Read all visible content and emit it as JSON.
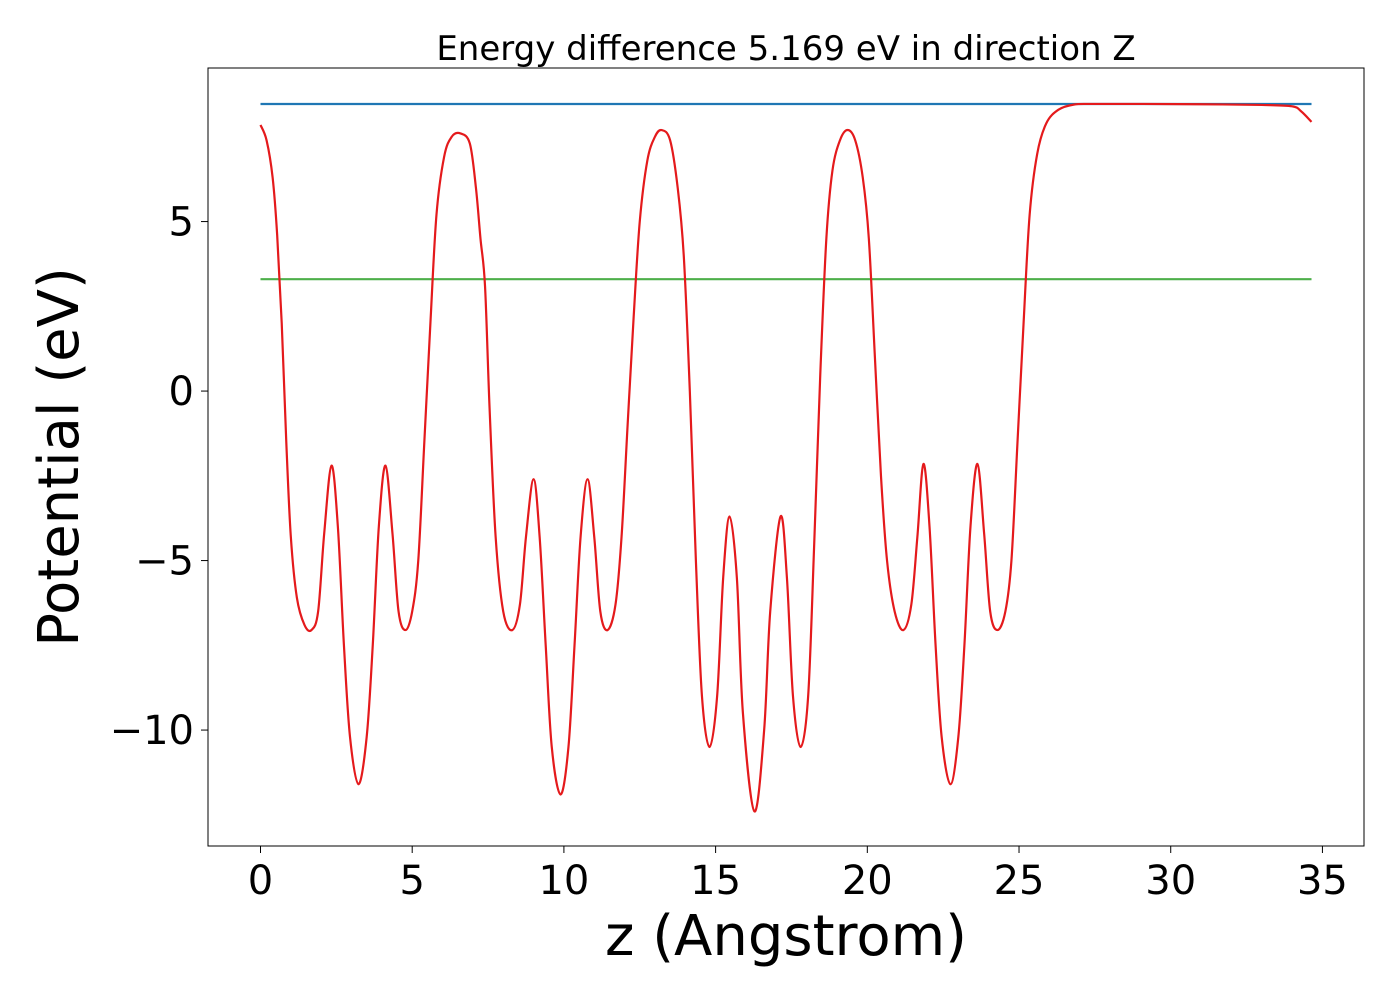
{
  "chart_data": {
    "type": "line",
    "title": "Energy difference 5.169 eV in direction Z",
    "xlabel": "z (Angstrom)",
    "ylabel": "Potential (eV)",
    "xlim": [
      -1.73,
      36.37
    ],
    "ylim": [
      -13.42,
      9.53
    ],
    "xticks": [
      0,
      5,
      10,
      15,
      20,
      25,
      30,
      35
    ],
    "yticks": [
      {
        "value": -10,
        "label": "−10"
      },
      {
        "value": -5,
        "label": "−5"
      },
      0,
      5
    ],
    "series": [
      {
        "color": "#1f77b4",
        "x": [
          0,
          34.64
        ],
        "values": [
          8.469,
          8.469
        ]
      },
      {
        "color": "#4daf4a",
        "x": [
          0,
          34.64
        ],
        "values": [
          3.3,
          3.3
        ]
      },
      {
        "color": "#e41a1c",
        "x": [
          0,
          0.2,
          0.4,
          0.55,
          0.7,
          0.85,
          1.0,
          1.2,
          1.45,
          1.68,
          1.9,
          2.1,
          2.34,
          2.55,
          2.75,
          2.95,
          3.23,
          3.5,
          3.7,
          3.9,
          4.12,
          4.35,
          4.55,
          4.78,
          5.0,
          5.2,
          5.4,
          5.6,
          5.8,
          6.05,
          6.3,
          6.59,
          6.9,
          7.1,
          7.25,
          7.4,
          7.55,
          7.75,
          8.0,
          8.3,
          8.55,
          8.75,
          9.0,
          9.2,
          9.4,
          9.6,
          9.89,
          10.15,
          10.35,
          10.55,
          10.78,
          11.0,
          11.2,
          11.44,
          11.7,
          11.9,
          12.1,
          12.3,
          12.5,
          12.75,
          13.0,
          13.22,
          13.5,
          13.75,
          13.95,
          14.15,
          14.35,
          14.55,
          14.8,
          15.05,
          15.25,
          15.46,
          15.7,
          15.9,
          16.28,
          16.6,
          16.8,
          17.14,
          17.35,
          17.55,
          17.8,
          18.05,
          18.25,
          18.45,
          18.65,
          18.85,
          19.1,
          19.35,
          19.6,
          19.85,
          20.05,
          20.25,
          20.45,
          20.65,
          20.9,
          21.19,
          21.45,
          21.65,
          21.85,
          22.05,
          22.25,
          22.45,
          22.74,
          23.0,
          23.2,
          23.4,
          23.63,
          23.85,
          24.05,
          24.29,
          24.55,
          24.75,
          24.95,
          25.15,
          25.35,
          25.6,
          25.9,
          26.3,
          26.8,
          27.4,
          29,
          31,
          33,
          34.0,
          34.3,
          34.64
        ],
        "values": [
          7.85,
          7.4,
          6.3,
          4.6,
          2.0,
          -1.5,
          -4.3,
          -6.1,
          -6.9,
          -7.05,
          -6.5,
          -4.2,
          -2.2,
          -4.0,
          -7.5,
          -10.2,
          -11.6,
          -10.2,
          -7.5,
          -4.0,
          -2.2,
          -4.2,
          -6.5,
          -7.05,
          -6.5,
          -5.0,
          -1.5,
          2.0,
          5.2,
          6.9,
          7.5,
          7.6,
          7.3,
          6.0,
          4.5,
          3.1,
          -0.5,
          -4.3,
          -6.5,
          -7.05,
          -6.3,
          -4.3,
          -2.6,
          -4.3,
          -7.5,
          -10.5,
          -11.9,
          -10.5,
          -7.5,
          -4.3,
          -2.6,
          -4.3,
          -6.5,
          -7.05,
          -6.3,
          -4.3,
          -1.0,
          2.2,
          5.0,
          6.8,
          7.5,
          7.7,
          7.4,
          6.0,
          4.0,
          0.0,
          -5.0,
          -9.0,
          -10.5,
          -9.0,
          -5.5,
          -3.7,
          -5.5,
          -9.5,
          -12.4,
          -10.0,
          -6.5,
          -3.7,
          -5.5,
          -9.0,
          -10.5,
          -9.0,
          -4.5,
          0.5,
          4.5,
          6.5,
          7.4,
          7.7,
          7.4,
          6.3,
          4.5,
          1.0,
          -2.5,
          -5.0,
          -6.5,
          -7.05,
          -6.3,
          -4.3,
          -2.15,
          -4.0,
          -7.5,
          -10.2,
          -11.6,
          -10.2,
          -7.5,
          -4.0,
          -2.15,
          -4.2,
          -6.5,
          -7.05,
          -6.5,
          -5.0,
          -1.5,
          2.0,
          5.2,
          7.0,
          7.9,
          8.3,
          8.45,
          8.47,
          8.47,
          8.46,
          8.44,
          8.4,
          8.25,
          7.94
        ]
      }
    ]
  }
}
